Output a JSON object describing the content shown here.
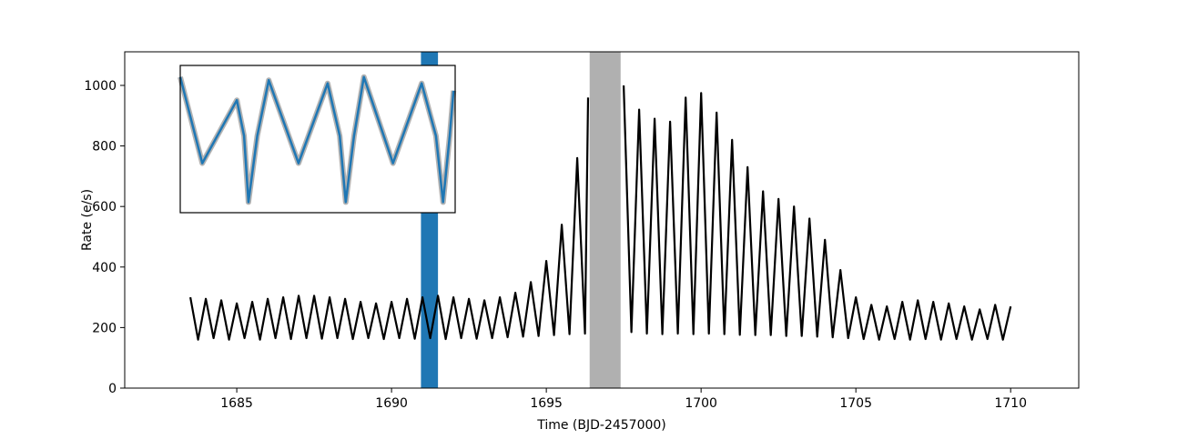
{
  "chart_data": {
    "type": "line",
    "xlabel": "Time (BJD-2457000)",
    "ylabel": "Rate (e/s)",
    "xlim": [
      1681.38,
      1712.2
    ],
    "ylim": [
      0,
      1111
    ],
    "xticks": [
      1685,
      1690,
      1695,
      1700,
      1705,
      1710
    ],
    "yticks": [
      0,
      200,
      400,
      600,
      800,
      1000
    ],
    "series": [
      {
        "color": "#000000",
        "x": [
          1683.5,
          1683.75,
          1684.0,
          1684.25,
          1684.5,
          1684.75,
          1685.0,
          1685.25,
          1685.5,
          1685.75,
          1686.0,
          1686.25,
          1686.5,
          1686.75,
          1687.0,
          1687.25,
          1687.5,
          1687.75,
          1688.0,
          1688.25,
          1688.5,
          1688.75,
          1689.0,
          1689.25,
          1689.5,
          1689.75,
          1690.0,
          1690.25,
          1690.5,
          1690.75,
          1691.0,
          1691.25,
          1691.5,
          1691.75,
          1692.0,
          1692.25,
          1692.5,
          1692.75,
          1693.0,
          1693.25,
          1693.5,
          1693.75,
          1694.0,
          1694.25,
          1694.5,
          1694.75,
          1695.0,
          1695.25,
          1695.5,
          1695.75,
          1696.0,
          1696.25,
          1696.35,
          1696.9,
          1697.5,
          1697.75,
          1698.0,
          1698.25,
          1698.5,
          1698.75,
          1699.0,
          1699.25,
          1699.5,
          1699.75,
          1700.0,
          1700.25,
          1700.5,
          1700.75,
          1701.0,
          1701.25,
          1701.5,
          1701.75,
          1702.0,
          1702.25,
          1702.5,
          1702.75,
          1703.0,
          1703.25,
          1703.5,
          1703.75,
          1704.0,
          1704.25,
          1704.5,
          1704.75,
          1705.0,
          1705.25,
          1705.5,
          1705.75,
          1706.0,
          1706.25,
          1706.5,
          1706.75,
          1707.0,
          1707.25,
          1707.5,
          1707.75,
          1708.0,
          1708.25,
          1708.5,
          1708.75,
          1709.0,
          1709.25,
          1709.5,
          1709.75,
          1710.0
        ],
        "values": [
          300,
          160,
          295,
          165,
          290,
          160,
          280,
          165,
          285,
          160,
          295,
          165,
          300,
          162,
          305,
          165,
          305,
          163,
          300,
          165,
          295,
          162,
          285,
          165,
          280,
          162,
          285,
          165,
          295,
          163,
          300,
          165,
          305,
          162,
          300,
          165,
          295,
          163,
          290,
          165,
          300,
          168,
          315,
          170,
          350,
          172,
          420,
          175,
          540,
          178,
          760,
          180,
          960,
          null,
          1000,
          185,
          920,
          180,
          890,
          178,
          880,
          180,
          960,
          178,
          975,
          180,
          910,
          178,
          820,
          176,
          730,
          175,
          650,
          175,
          625,
          172,
          600,
          172,
          560,
          170,
          490,
          168,
          390,
          165,
          300,
          162,
          275,
          160,
          270,
          162,
          285,
          160,
          290,
          162,
          285,
          160,
          280,
          162,
          270,
          160,
          260,
          162,
          275,
          160,
          270
        ]
      }
    ],
    "spans": [
      {
        "xlim": [
          1690.95,
          1691.5
        ],
        "color": "#1f77b4"
      },
      {
        "xlim": [
          1696.4,
          1697.4
        ],
        "color": "#b0b0b0"
      }
    ],
    "inset": {
      "color": "#1f77b4",
      "error_color": "#a0a0a0",
      "xlim": [
        1691.0,
        1691.5
      ],
      "ylim": [
        180,
        320
      ],
      "x": [
        1691.0,
        1691.04,
        1691.103,
        1691.116,
        1691.124,
        1691.14,
        1691.161,
        1691.215,
        1691.268,
        1691.29,
        1691.301,
        1691.316,
        1691.334,
        1691.387,
        1691.439,
        1691.465,
        1691.478,
        1691.49,
        1691.497
      ],
      "values": [
        309,
        227,
        287,
        253,
        190,
        253,
        306,
        227,
        303,
        253,
        190,
        253,
        309,
        227,
        303,
        253,
        190,
        253,
        296
      ]
    }
  }
}
